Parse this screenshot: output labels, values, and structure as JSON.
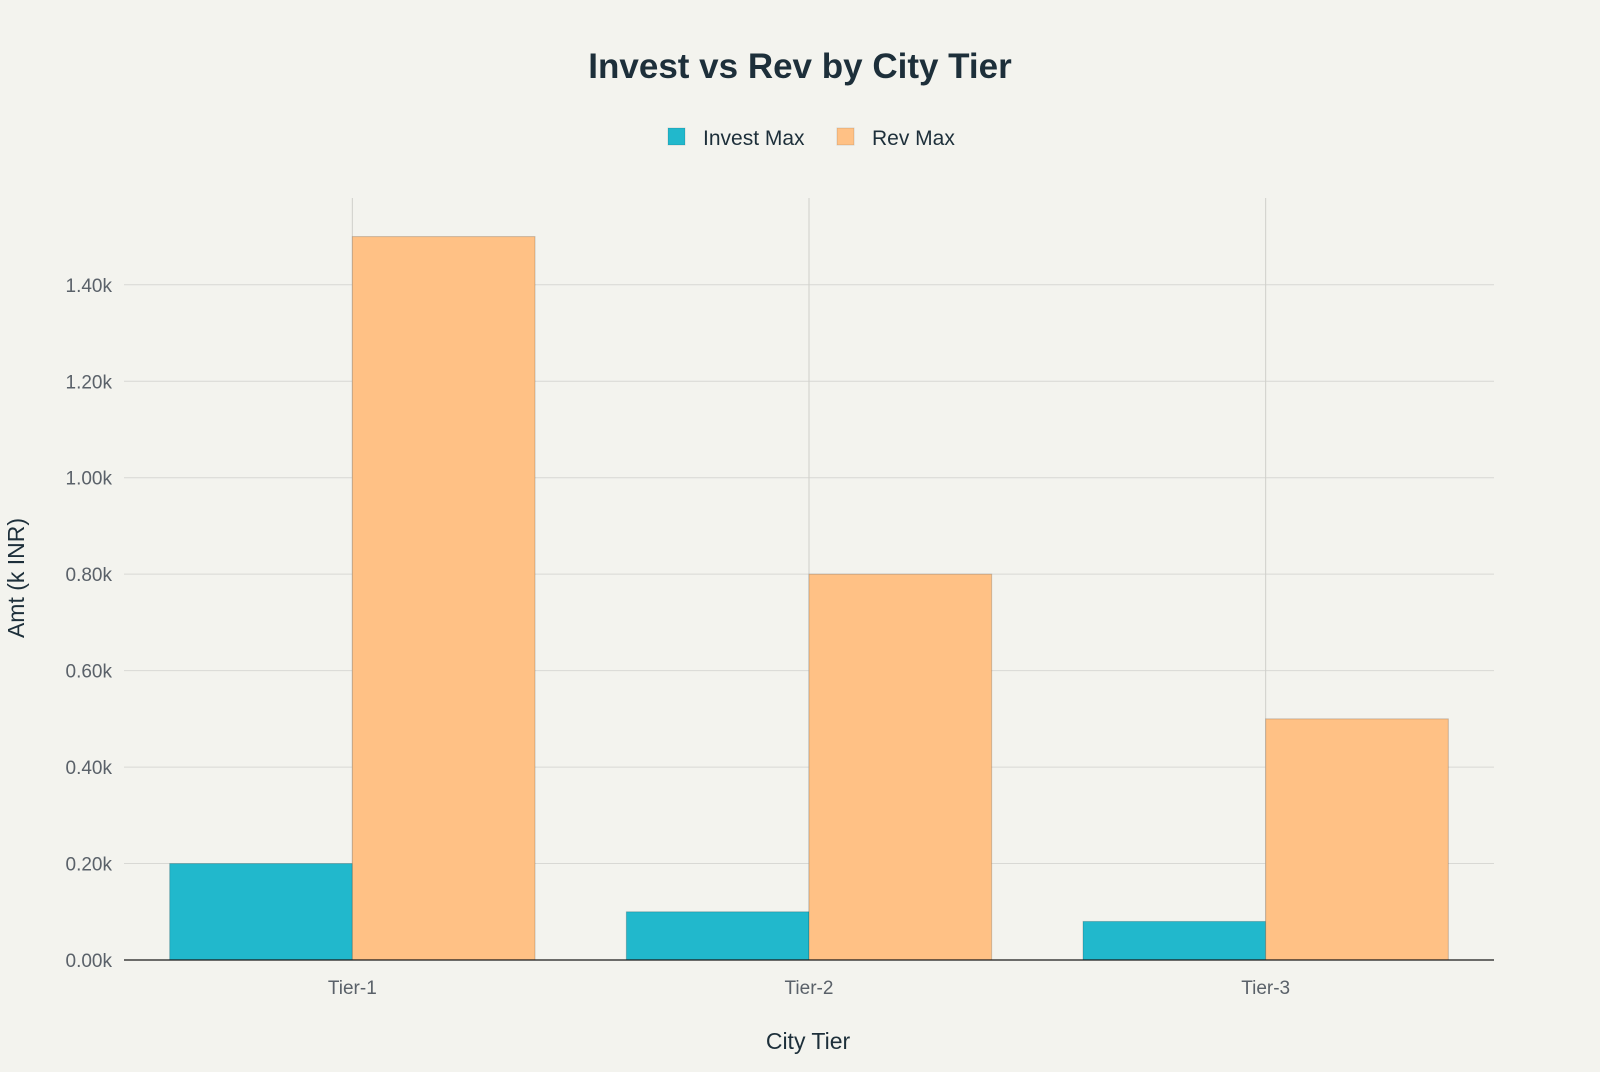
{
  "chart_data": {
    "type": "bar",
    "title": "Invest vs Rev by City Tier",
    "xlabel": "City Tier",
    "ylabel": "Amt (k INR)",
    "categories": [
      "Tier-1",
      "Tier-2",
      "Tier-3"
    ],
    "series": [
      {
        "name": "Invest Max",
        "values": [
          200,
          100,
          80
        ],
        "color": "#21b8cc"
      },
      {
        "name": "Rev Max",
        "values": [
          1500,
          800,
          500
        ],
        "color": "#ffc185"
      }
    ],
    "ylim": [
      0,
      1580
    ],
    "yticks": [
      0,
      200,
      400,
      600,
      800,
      1000,
      1200,
      1400
    ],
    "ytick_labels": [
      "0.00k",
      "0.20k",
      "0.40k",
      "0.60k",
      "0.80k",
      "1.00k",
      "1.20k",
      "1.40k"
    ],
    "grid": true,
    "legend_position": "top-center",
    "background_color": "#f3f3ee"
  }
}
